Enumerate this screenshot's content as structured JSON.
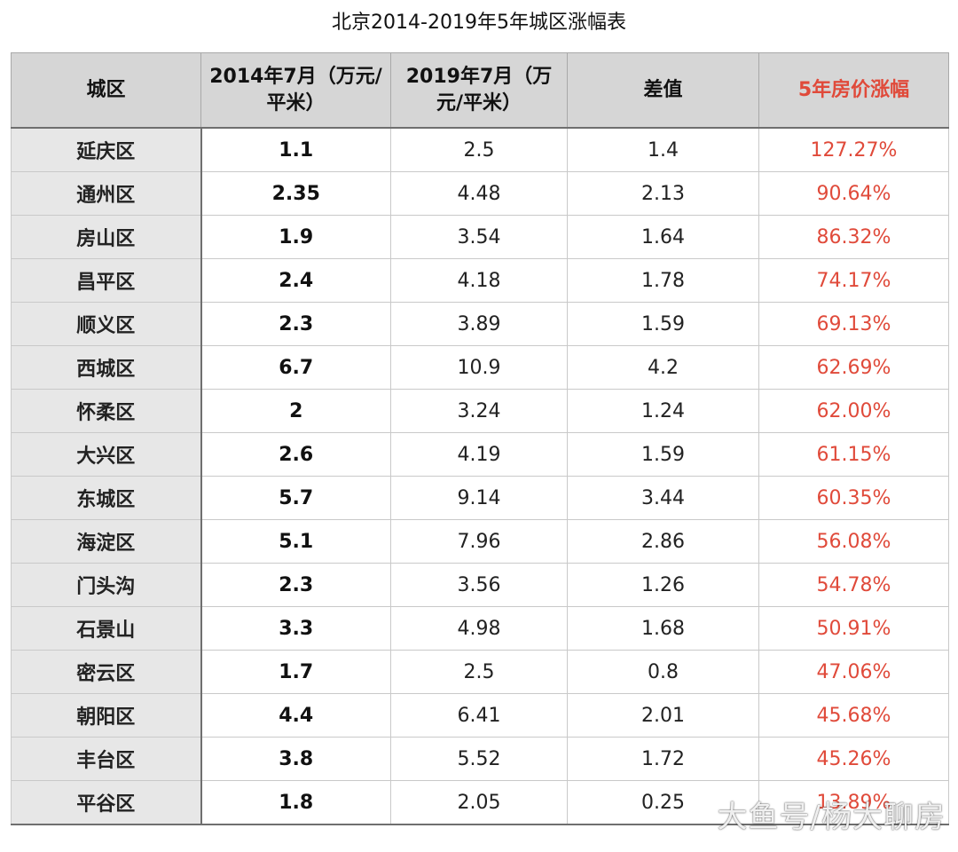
{
  "title": "北京2014-2019年5年城区涨幅表",
  "headers": [
    "城区",
    "2014年7月（万元/平米）",
    "2019年7月（万元/平米）",
    "差值",
    "5年房价涨幅"
  ],
  "rows": [
    {
      "district": "延庆区",
      "p2014": "1.1",
      "p2019": "2.5",
      "diff": "1.4",
      "rate": "127.27%"
    },
    {
      "district": "通州区",
      "p2014": "2.35",
      "p2019": "4.48",
      "diff": "2.13",
      "rate": "90.64%"
    },
    {
      "district": "房山区",
      "p2014": "1.9",
      "p2019": "3.54",
      "diff": "1.64",
      "rate": "86.32%"
    },
    {
      "district": "昌平区",
      "p2014": "2.4",
      "p2019": "4.18",
      "diff": "1.78",
      "rate": "74.17%"
    },
    {
      "district": "顺义区",
      "p2014": "2.3",
      "p2019": "3.89",
      "diff": "1.59",
      "rate": "69.13%"
    },
    {
      "district": "西城区",
      "p2014": "6.7",
      "p2019": "10.9",
      "diff": "4.2",
      "rate": "62.69%"
    },
    {
      "district": "怀柔区",
      "p2014": "2",
      "p2019": "3.24",
      "diff": "1.24",
      "rate": "62.00%"
    },
    {
      "district": "大兴区",
      "p2014": "2.6",
      "p2019": "4.19",
      "diff": "1.59",
      "rate": "61.15%"
    },
    {
      "district": "东城区",
      "p2014": "5.7",
      "p2019": "9.14",
      "diff": "3.44",
      "rate": "60.35%"
    },
    {
      "district": "海淀区",
      "p2014": "5.1",
      "p2019": "7.96",
      "diff": "2.86",
      "rate": "56.08%"
    },
    {
      "district": "门头沟",
      "p2014": "2.3",
      "p2019": "3.56",
      "diff": "1.26",
      "rate": "54.78%"
    },
    {
      "district": "石景山",
      "p2014": "3.3",
      "p2019": "4.98",
      "diff": "1.68",
      "rate": "50.91%"
    },
    {
      "district": "密云区",
      "p2014": "1.7",
      "p2019": "2.5",
      "diff": "0.8",
      "rate": "47.06%"
    },
    {
      "district": "朝阳区",
      "p2014": "4.4",
      "p2019": "6.41",
      "diff": "2.01",
      "rate": "45.68%"
    },
    {
      "district": "丰台区",
      "p2014": "3.8",
      "p2019": "5.52",
      "diff": "1.72",
      "rate": "45.26%"
    },
    {
      "district": "平谷区",
      "p2014": "1.8",
      "p2019": "2.05",
      "diff": "0.25",
      "rate": "13.89%"
    }
  ],
  "watermark": "大鱼号/杨大聊房",
  "colors": {
    "header_bg": "#d6d6d6",
    "district_bg": "#e7e7e7",
    "accent_red": "#e04a3a"
  }
}
